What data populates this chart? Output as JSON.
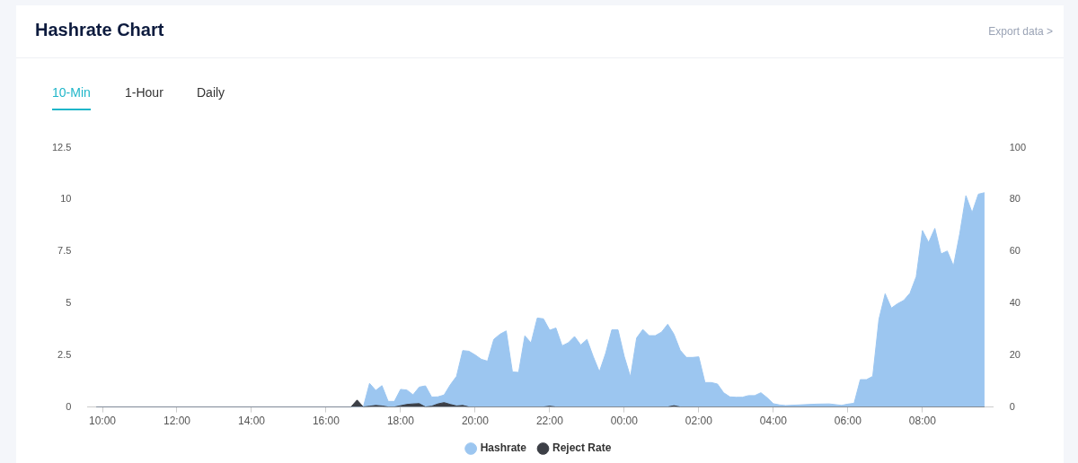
{
  "chart_data": {
    "type": "area",
    "title": "Hashrate Chart",
    "annotations": [
      "Export data >",
      "10-Min",
      "1-Hour",
      "Daily"
    ],
    "xlim": [
      "2000-01-01T09:36",
      "2000-01-02T09:54"
    ],
    "xticks": [
      {
        "value": "2000-01-01T10:00",
        "label": "10:00"
      },
      {
        "value": "2000-01-01T12:00",
        "label": "12:00"
      },
      {
        "value": "2000-01-01T14:00",
        "label": "14:00"
      },
      {
        "value": "2000-01-01T16:00",
        "label": "16:00"
      },
      {
        "value": "2000-01-01T18:00",
        "label": "18:00"
      },
      {
        "value": "2000-01-01T20:00",
        "label": "20:00"
      },
      {
        "value": "2000-01-01T22:00",
        "label": "22:00"
      },
      {
        "value": "2000-01-02T00:00",
        "label": "00:00"
      },
      {
        "value": "2000-01-02T02:00",
        "label": "02:00"
      },
      {
        "value": "2000-01-02T04:00",
        "label": "04:00"
      },
      {
        "value": "2000-01-02T06:00",
        "label": "06:00"
      },
      {
        "value": "2000-01-02T08:00",
        "label": "08:00"
      }
    ],
    "ylim": [
      0,
      12.5
    ],
    "yticks": [
      0,
      2.5,
      5,
      7.5,
      10,
      12.5
    ],
    "y2lim": [
      0,
      100
    ],
    "y2ticks": [
      0,
      20,
      40,
      60,
      80,
      100
    ],
    "grid": false,
    "legend": "bottom",
    "marker": "none",
    "series": [
      {
        "name": "Hashrate",
        "color": "#9cc6f0",
        "x": [
          "2000-01-01T09:50",
          "2000-01-01T16:50",
          "2000-01-01T17:00",
          "2000-01-01T17:10",
          "2000-01-01T17:20",
          "2000-01-01T17:30",
          "2000-01-01T17:40",
          "2000-01-01T17:50",
          "2000-01-01T18:00",
          "2000-01-01T18:10",
          "2000-01-01T18:20",
          "2000-01-01T18:30",
          "2000-01-01T18:40",
          "2000-01-01T18:50",
          "2000-01-01T19:00",
          "2000-01-01T19:10",
          "2000-01-01T19:20",
          "2000-01-01T19:30",
          "2000-01-01T19:40",
          "2000-01-01T19:50",
          "2000-01-01T20:00",
          "2000-01-01T20:10",
          "2000-01-01T20:20",
          "2000-01-01T20:30",
          "2000-01-01T20:40",
          "2000-01-01T20:50",
          "2000-01-01T21:00",
          "2000-01-01T21:10",
          "2000-01-01T21:20",
          "2000-01-01T21:30",
          "2000-01-01T21:40",
          "2000-01-01T21:50",
          "2000-01-01T22:00",
          "2000-01-01T22:10",
          "2000-01-01T22:20",
          "2000-01-01T22:30",
          "2000-01-01T22:40",
          "2000-01-01T22:50",
          "2000-01-01T23:00",
          "2000-01-01T23:10",
          "2000-01-01T23:20",
          "2000-01-01T23:30",
          "2000-01-01T23:40",
          "2000-01-01T23:50",
          "2000-01-02T00:00",
          "2000-01-02T00:10",
          "2000-01-02T00:20",
          "2000-01-02T00:30",
          "2000-01-02T00:40",
          "2000-01-02T00:50",
          "2000-01-02T01:00",
          "2000-01-02T01:10",
          "2000-01-02T01:20",
          "2000-01-02T01:30",
          "2000-01-02T01:40",
          "2000-01-02T01:50",
          "2000-01-02T02:00",
          "2000-01-02T02:10",
          "2000-01-02T02:20",
          "2000-01-02T02:30",
          "2000-01-02T02:40",
          "2000-01-02T02:50",
          "2000-01-02T03:00",
          "2000-01-02T03:10",
          "2000-01-02T03:20",
          "2000-01-02T03:30",
          "2000-01-02T03:40",
          "2000-01-02T03:50",
          "2000-01-02T04:00",
          "2000-01-02T04:10",
          "2000-01-02T04:20",
          "2000-01-02T05:10",
          "2000-01-02T05:30",
          "2000-01-02T05:50",
          "2000-01-02T06:00",
          "2000-01-02T06:10",
          "2000-01-02T06:20",
          "2000-01-02T06:30",
          "2000-01-02T06:40",
          "2000-01-02T06:50",
          "2000-01-02T07:00",
          "2000-01-02T07:10",
          "2000-01-02T07:20",
          "2000-01-02T07:30",
          "2000-01-02T07:40",
          "2000-01-02T07:50",
          "2000-01-02T08:00",
          "2000-01-02T08:10",
          "2000-01-02T08:20",
          "2000-01-02T08:30",
          "2000-01-02T08:40",
          "2000-01-02T08:50",
          "2000-01-02T09:00",
          "2000-01-02T09:10",
          "2000-01-02T09:20",
          "2000-01-02T09:30",
          "2000-01-02T09:40"
        ],
        "values": [
          0,
          0,
          0,
          1.14,
          0.8,
          1.03,
          0.27,
          0.27,
          0.85,
          0.82,
          0.59,
          0.96,
          1.02,
          0.48,
          0.49,
          0.58,
          1.07,
          1.48,
          2.72,
          2.69,
          2.51,
          2.3,
          2.21,
          3.26,
          3.51,
          3.67,
          1.69,
          1.67,
          3.43,
          3.09,
          4.29,
          4.25,
          3.7,
          3.81,
          2.95,
          3.1,
          3.4,
          2.99,
          3.26,
          2.44,
          1.7,
          2.58,
          3.72,
          3.72,
          2.44,
          1.45,
          3.33,
          3.74,
          3.44,
          3.44,
          3.61,
          3.99,
          3.51,
          2.74,
          2.39,
          2.39,
          2.42,
          1.18,
          1.18,
          1.11,
          0.69,
          0.49,
          0.47,
          0.47,
          0.55,
          0.55,
          0.69,
          0.45,
          0.16,
          0.1,
          0.07,
          0.14,
          0.15,
          0.08,
          0.14,
          0.18,
          1.32,
          1.32,
          1.48,
          4.23,
          5.46,
          4.77,
          4.98,
          5.14,
          5.49,
          6.28,
          8.51,
          7.93,
          8.61,
          7.38,
          7.52,
          6.8,
          8.34,
          10.19,
          9.37,
          10.26,
          10.33
        ]
      },
      {
        "name": "Reject Rate",
        "color": "#3c3f46",
        "axis": "y2",
        "x": [
          "2000-01-01T09:50",
          "2000-01-01T16:40",
          "2000-01-01T16:50",
          "2000-01-01T17:00",
          "2000-01-01T17:10",
          "2000-01-01T17:20",
          "2000-01-01T17:30",
          "2000-01-01T17:40",
          "2000-01-01T17:50",
          "2000-01-01T18:00",
          "2000-01-01T18:10",
          "2000-01-01T18:20",
          "2000-01-01T18:30",
          "2000-01-01T18:40",
          "2000-01-01T18:50",
          "2000-01-01T19:00",
          "2000-01-01T19:10",
          "2000-01-01T19:20",
          "2000-01-01T19:30",
          "2000-01-01T19:40",
          "2000-01-01T19:50",
          "2000-01-01T21:50",
          "2000-01-01T22:00",
          "2000-01-01T22:10",
          "2000-01-02T01:10",
          "2000-01-02T01:20",
          "2000-01-02T01:30",
          "2000-01-02T09:40"
        ],
        "values": [
          0,
          0,
          2.7,
          0,
          0.3,
          0.6,
          0.4,
          0,
          0,
          0.5,
          1,
          1.2,
          1.3,
          0,
          0.3,
          1.2,
          1.7,
          1,
          0.4,
          0.6,
          0,
          0,
          0.3,
          0,
          0,
          0.5,
          0,
          0
        ]
      }
    ]
  }
}
